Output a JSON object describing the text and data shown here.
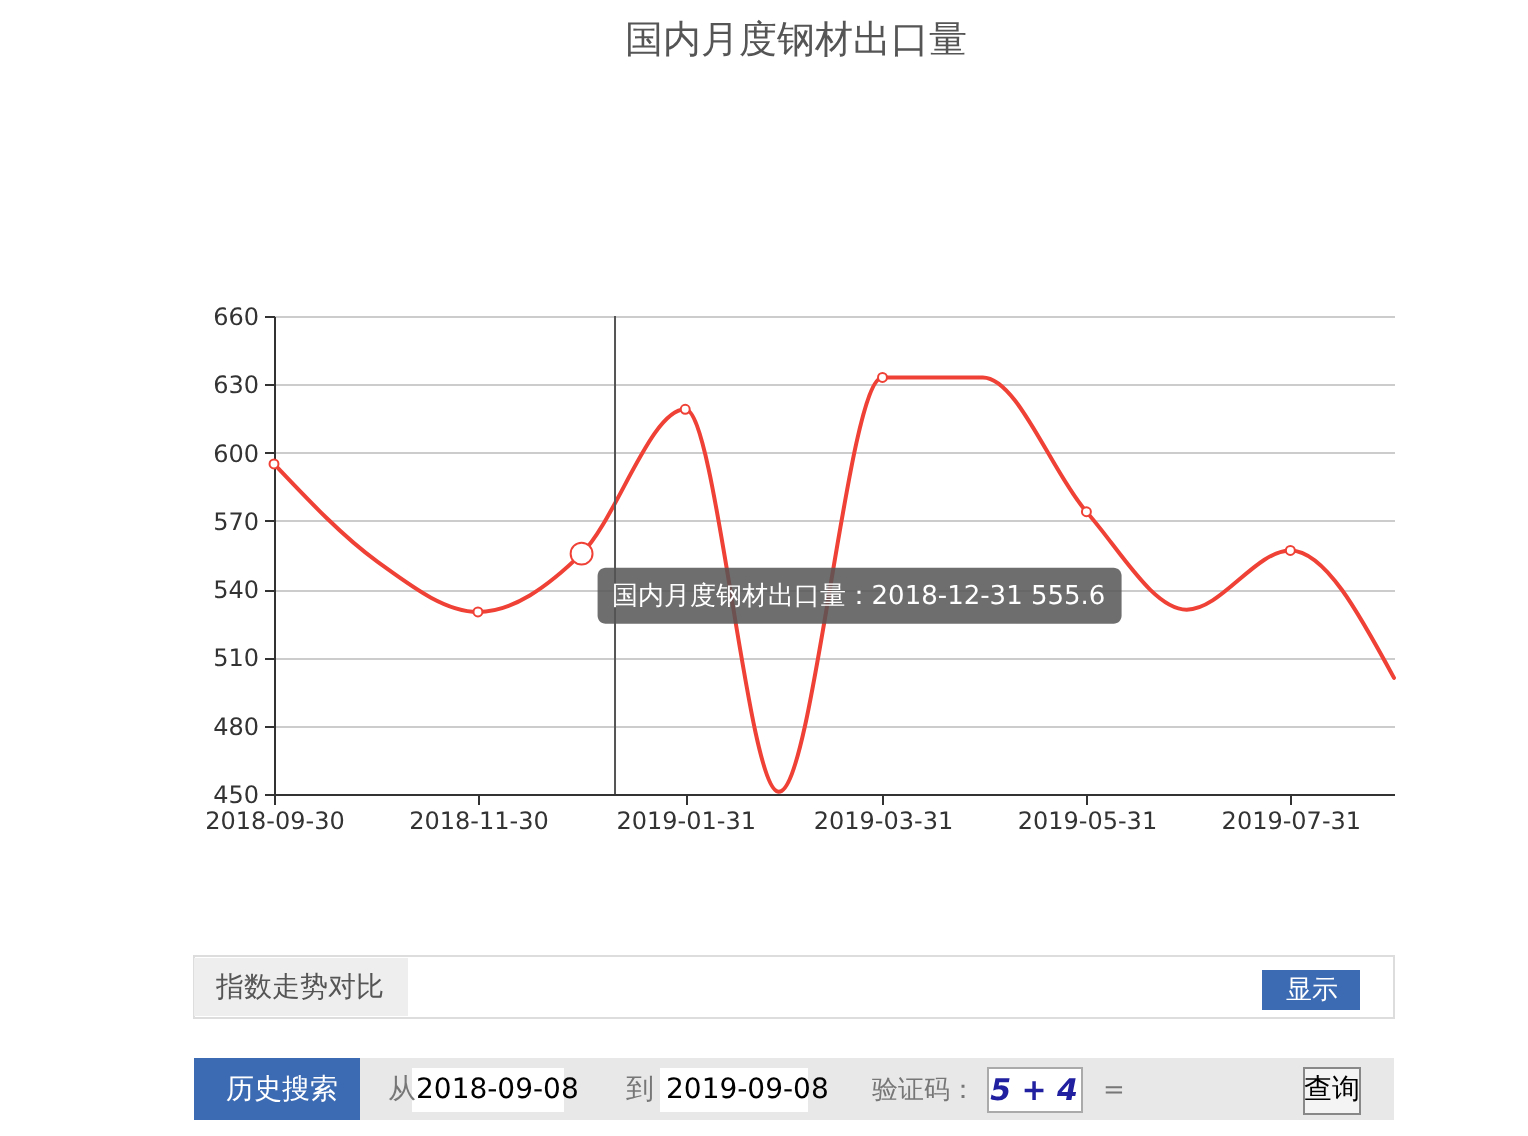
{
  "chart_data": {
    "type": "line",
    "title": "国内月度钢材出口量",
    "x": [
      "2018-09-30",
      "2018-10-31",
      "2018-11-30",
      "2018-12-31",
      "2019-01-31",
      "2019-02-28",
      "2019-03-31",
      "2019-04-30",
      "2019-05-31",
      "2019-06-30",
      "2019-07-31",
      "2019-08-31"
    ],
    "series": [
      {
        "color": "#ef4136",
        "values": [
          595,
          552,
          530,
          555.6,
          619,
          451,
          633,
          633,
          574,
          531,
          557,
          501
        ]
      }
    ],
    "xlim": [
      "2018-09-30",
      "2019-08-31"
    ],
    "xticks": [
      "2018-09-30",
      "2018-11-30",
      "2019-01-31",
      "2019-03-31",
      "2019-05-31",
      "2019-07-31"
    ],
    "ylim": [
      450,
      660
    ],
    "yticks": [
      450,
      480,
      510,
      540,
      570,
      600,
      630,
      660
    ],
    "grid": "y",
    "marker": "circle",
    "line_style": "solid",
    "ref_lines": [
      {
        "axis": "x",
        "value": "2019-01-10",
        "color": "#555555"
      }
    ],
    "annotations": [
      {
        "text": "国内月度钢材出口量：2018-12-31 555.6",
        "x": "2018-12-31",
        "y": 555.6
      },
      "指数走势对比",
      "显示",
      "历史搜索",
      "从",
      "2018-09-08",
      "到",
      "2019-09-08",
      "验证码：",
      "5 + 4",
      "=",
      "查询"
    ]
  }
}
